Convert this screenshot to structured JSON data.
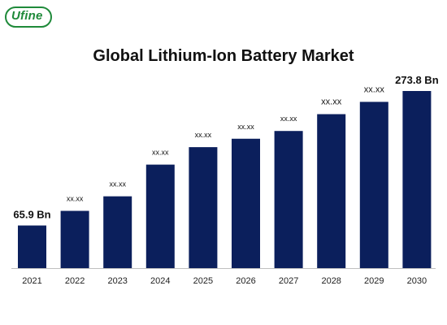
{
  "logo": {
    "text": "Ufine"
  },
  "chart_data": {
    "type": "bar",
    "title": "Global Lithium-Ion Battery Market",
    "categories": [
      "2021",
      "2022",
      "2023",
      "2024",
      "2025",
      "2026",
      "2027",
      "2028",
      "2029",
      "2030"
    ],
    "values": [
      65.9,
      88.5,
      111.0,
      160.0,
      187.0,
      200.0,
      212.0,
      238.0,
      257.0,
      273.8
    ],
    "data_labels": [
      "65.9 Bn",
      "xx.xx",
      "xx.xx",
      "xx.xx",
      "xx.xx",
      "xx.xx",
      "xx.xx",
      "xx.xx",
      "xx.xx",
      "273.8 Bn"
    ],
    "ylim": [
      0,
      300
    ],
    "bar_color": "#0b1f5c",
    "grid": false,
    "legend": "none"
  }
}
